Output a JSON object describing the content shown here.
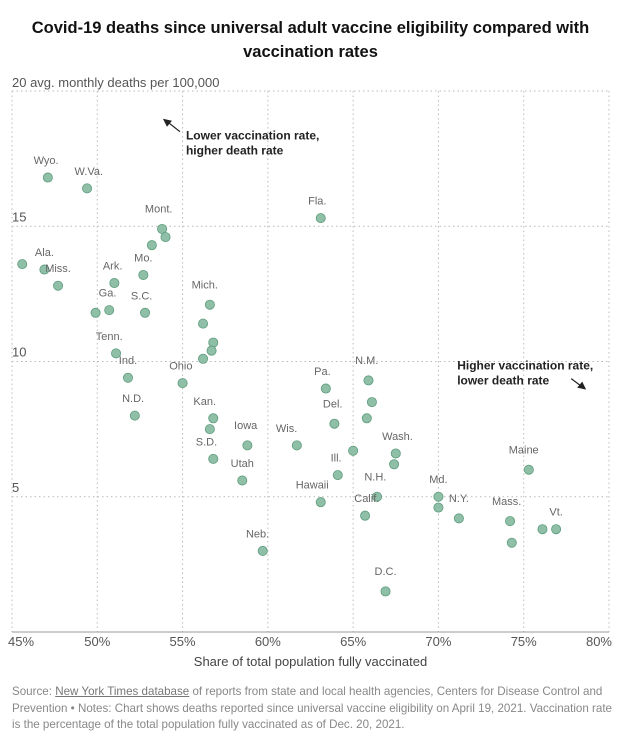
{
  "header": {
    "title_line1": "Covid-19 deaths since universal adult vaccine eligibility compared with",
    "title_line2": "vaccination rates"
  },
  "notes": {
    "source_label": "Source:",
    "source_link": "New York Times database",
    "source_rest": " of reports from state and local health agencies, Centers for Disease Control and Prevention",
    "separator": "•",
    "notes_text": "Notes: Chart shows deaths reported since universal vaccine eligibility on April 19, 2021. Vaccination rate is the percentage of the total population fully vaccinated as of Dec. 20, 2021."
  },
  "colors": {
    "dot_fill": "#8fbfa6",
    "dot_stroke": "#5e9c7e",
    "grid": "#bbbbbb"
  },
  "chart_data": {
    "type": "scatter",
    "title": "Covid-19 deaths since universal adult vaccine eligibility compared with vaccination rates",
    "xlabel": "Share of total population fully vaccinated",
    "ylabel": "20 avg. monthly deaths per 100,000",
    "xlim": [
      45,
      80
    ],
    "ylim": [
      0,
      20
    ],
    "x_ticks": [
      {
        "value": 45,
        "label": "45%"
      },
      {
        "value": 50,
        "label": "50%"
      },
      {
        "value": 55,
        "label": "55%"
      },
      {
        "value": 60,
        "label": "60%"
      },
      {
        "value": 65,
        "label": "65%"
      },
      {
        "value": 70,
        "label": "70%"
      },
      {
        "value": 75,
        "label": "75%"
      },
      {
        "value": 80,
        "label": "80%"
      }
    ],
    "y_ticks": [
      {
        "value": 15,
        "label": "15"
      },
      {
        "value": 10,
        "label": "10"
      },
      {
        "value": 5,
        "label": "5"
      }
    ],
    "annotations": [
      {
        "lines": [
          "Lower vaccination rate,",
          "higher death rate"
        ],
        "x": 55.2,
        "y": 18.2,
        "arrow": "up-left"
      },
      {
        "lines": [
          "Higher vaccination rate,",
          "lower death rate"
        ],
        "x": 71.1,
        "y": 9.7,
        "arrow": "down-right"
      }
    ],
    "points": [
      {
        "label": "Wyo.",
        "x": 47.1,
        "y": 16.8,
        "lx": 47.0,
        "ly": 17.3
      },
      {
        "label": "W.Va.",
        "x": 49.4,
        "y": 16.4,
        "lx": 49.5,
        "ly": 16.9
      },
      {
        "label": "Mont.",
        "x": 53.8,
        "y": 14.9,
        "lx": 53.6,
        "ly": 15.5
      },
      {
        "label": "",
        "x": 54.0,
        "y": 14.6
      },
      {
        "label": "",
        "x": 53.2,
        "y": 14.3
      },
      {
        "label": "Ala.",
        "x": 45.6,
        "y": 13.6,
        "lx": 46.9,
        "ly": 13.9
      },
      {
        "label": "Miss.",
        "x": 46.9,
        "y": 13.4,
        "lx": 47.7,
        "ly": 13.3
      },
      {
        "label": "",
        "x": 47.7,
        "y": 12.8
      },
      {
        "label": "Mo.",
        "x": 52.7,
        "y": 13.2,
        "lx": 52.7,
        "ly": 13.7
      },
      {
        "label": "Ark.",
        "x": 51.0,
        "y": 12.9,
        "lx": 50.9,
        "ly": 13.4
      },
      {
        "label": "Ga.",
        "x": 50.7,
        "y": 11.9,
        "lx": 50.6,
        "ly": 12.4
      },
      {
        "label": "",
        "x": 49.9,
        "y": 11.8
      },
      {
        "label": "S.C.",
        "x": 52.8,
        "y": 11.8,
        "lx": 52.6,
        "ly": 12.3
      },
      {
        "label": "Mich.",
        "x": 56.6,
        "y": 12.1,
        "lx": 56.3,
        "ly": 12.7
      },
      {
        "label": "",
        "x": 56.2,
        "y": 11.4
      },
      {
        "label": "",
        "x": 56.8,
        "y": 10.7
      },
      {
        "label": "",
        "x": 56.7,
        "y": 10.4
      },
      {
        "label": "",
        "x": 56.2,
        "y": 10.1
      },
      {
        "label": "Tenn.",
        "x": 51.1,
        "y": 10.3,
        "lx": 50.7,
        "ly": 10.8
      },
      {
        "label": "Ind.",
        "x": 51.8,
        "y": 9.4,
        "lx": 51.8,
        "ly": 9.9
      },
      {
        "label": "Ohio",
        "x": 55.0,
        "y": 9.2,
        "lx": 54.9,
        "ly": 9.7
      },
      {
        "label": "N.D.",
        "x": 52.2,
        "y": 8.0,
        "lx": 52.1,
        "ly": 8.5
      },
      {
        "label": "Kan.",
        "x": 56.8,
        "y": 7.9,
        "lx": 56.3,
        "ly": 8.4
      },
      {
        "label": "",
        "x": 56.6,
        "y": 7.5
      },
      {
        "label": "S.D.",
        "x": 56.8,
        "y": 6.4,
        "lx": 56.4,
        "ly": 6.9
      },
      {
        "label": "Iowa",
        "x": 58.8,
        "y": 6.9,
        "lx": 58.7,
        "ly": 7.5
      },
      {
        "label": "Utah",
        "x": 58.5,
        "y": 5.6,
        "lx": 58.5,
        "ly": 6.1
      },
      {
        "label": "Neb.",
        "x": 59.7,
        "y": 3.0,
        "lx": 59.4,
        "ly": 3.5
      },
      {
        "label": "Fla.",
        "x": 63.1,
        "y": 15.3,
        "lx": 62.9,
        "ly": 15.8
      },
      {
        "label": "Pa.",
        "x": 63.4,
        "y": 9.0,
        "lx": 63.2,
        "ly": 9.5
      },
      {
        "label": "N.M.",
        "x": 65.9,
        "y": 9.3,
        "lx": 65.8,
        "ly": 9.9
      },
      {
        "label": "",
        "x": 66.1,
        "y": 8.5
      },
      {
        "label": "",
        "x": 65.8,
        "y": 7.9
      },
      {
        "label": "Del.",
        "x": 63.9,
        "y": 7.7,
        "lx": 63.8,
        "ly": 8.3
      },
      {
        "label": "Wis.",
        "x": 61.7,
        "y": 6.9,
        "lx": 61.1,
        "ly": 7.4
      },
      {
        "label": "",
        "x": 65.0,
        "y": 6.7
      },
      {
        "label": "Wash.",
        "x": 67.5,
        "y": 6.6,
        "lx": 67.6,
        "ly": 7.1
      },
      {
        "label": "",
        "x": 67.4,
        "y": 6.2
      },
      {
        "label": "Ill.",
        "x": 64.1,
        "y": 5.8,
        "lx": 64.0,
        "ly": 6.3
      },
      {
        "label": "Hawaii",
        "x": 63.1,
        "y": 4.8,
        "lx": 62.6,
        "ly": 5.3
      },
      {
        "label": "N.H.",
        "x": 66.4,
        "y": 5.0,
        "lx": 66.3,
        "ly": 5.6
      },
      {
        "label": "Calif.",
        "x": 65.7,
        "y": 4.3,
        "lx": 65.8,
        "ly": 4.8
      },
      {
        "label": "D.C.",
        "x": 66.9,
        "y": 1.5,
        "lx": 66.9,
        "ly": 2.1
      },
      {
        "label": "Md.",
        "x": 70.0,
        "y": 5.0,
        "lx": 70.0,
        "ly": 5.5
      },
      {
        "label": "",
        "x": 70.0,
        "y": 4.6
      },
      {
        "label": "N.Y.",
        "x": 71.2,
        "y": 4.2,
        "lx": 71.2,
        "ly": 4.8
      },
      {
        "label": "Maine",
        "x": 75.3,
        "y": 6.0,
        "lx": 75.0,
        "ly": 6.6
      },
      {
        "label": "Mass.",
        "x": 74.2,
        "y": 4.1,
        "lx": 74.0,
        "ly": 4.7
      },
      {
        "label": "",
        "x": 74.3,
        "y": 3.3
      },
      {
        "label": "",
        "x": 76.1,
        "y": 3.8
      },
      {
        "label": "Vt.",
        "x": 76.9,
        "y": 3.8,
        "lx": 76.9,
        "ly": 4.3
      }
    ]
  }
}
